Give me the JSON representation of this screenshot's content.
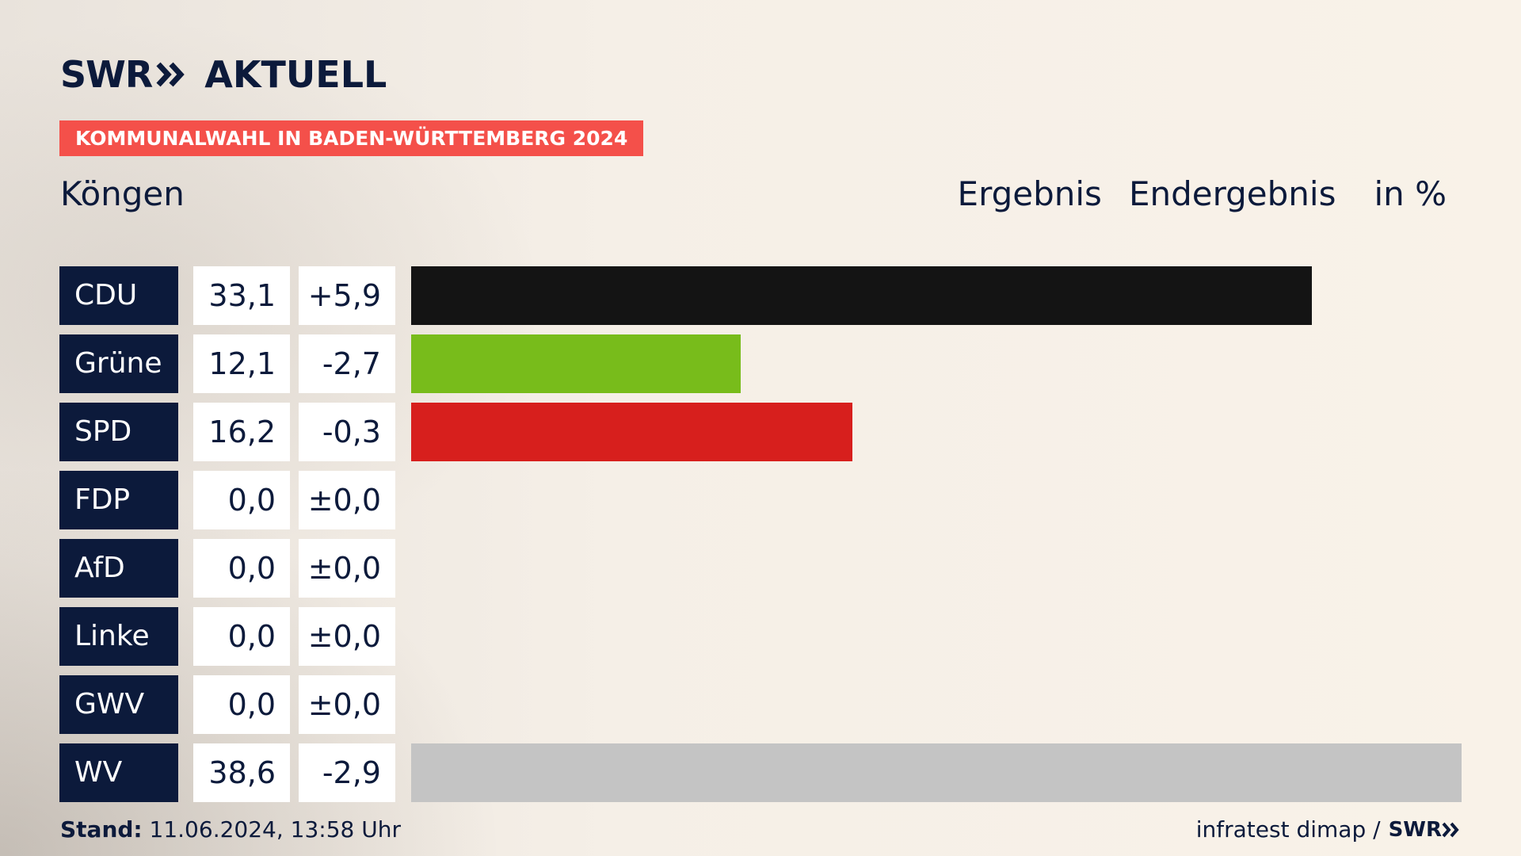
{
  "logo": {
    "swr": "SWR",
    "aktuell": "AKTUELL"
  },
  "banner": "KOMMUNALWAHL IN BADEN-WÜRTTEMBERG 2024",
  "place": "Köngen",
  "header": {
    "ergebnis": "Ergebnis",
    "endergebnis": "Endergebnis",
    "unit": "in %"
  },
  "chart_data": {
    "type": "bar",
    "orientation": "horizontal",
    "categories": [
      "CDU",
      "Grüne",
      "SPD",
      "FDP",
      "AfD",
      "Linke",
      "GWV",
      "WV"
    ],
    "values": [
      33.1,
      12.1,
      16.2,
      0.0,
      0.0,
      0.0,
      0.0,
      38.6
    ],
    "value_labels": [
      "33,1",
      "12,1",
      "16,2",
      "0,0",
      "0,0",
      "0,0",
      "0,0",
      "38,6"
    ],
    "diff_labels": [
      "+5,9",
      "-2,7",
      "-0,3",
      "±0,0",
      "±0,0",
      "±0,0",
      "±0,0",
      "-2,9"
    ],
    "colors": [
      "#141414",
      "#78bc1b",
      "#d71f1d",
      "#ffed00",
      "#1a9fdd",
      "#be3075",
      "#3e6fb0",
      "#c4c4c4"
    ],
    "xlim": [
      0,
      38.6
    ],
    "grid": false,
    "legend": "none"
  },
  "footer": {
    "stand_label": "Stand:",
    "stand_value": "11.06.2024, 13:58 Uhr",
    "source": "infratest dimap /",
    "swr": "SWR"
  }
}
